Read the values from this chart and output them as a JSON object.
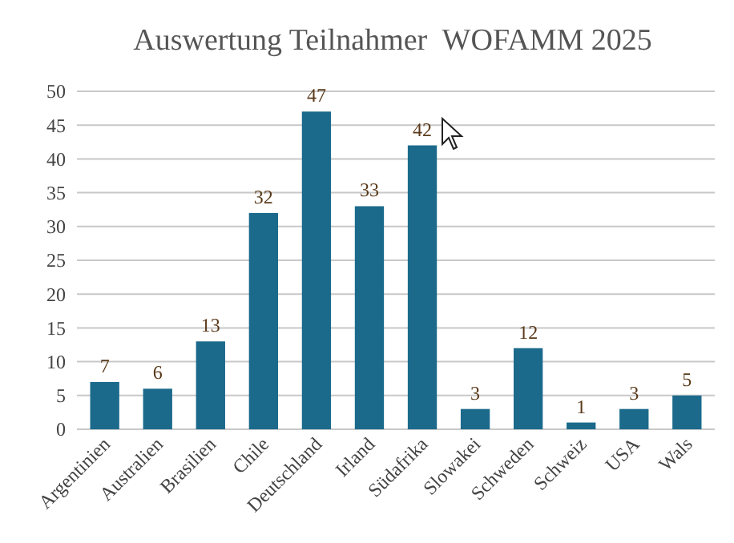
{
  "chart_data": {
    "type": "bar",
    "title": "Auswertung Teilnahmer  WOFAMM 2025",
    "categories": [
      "Argentinien",
      "Australien",
      "Brasilien",
      "Chile",
      "Deutschland",
      "Irland",
      "Südafrika",
      "Slowakei",
      "Schweden",
      "Schweiz",
      "USA",
      "Wals"
    ],
    "values": [
      7,
      6,
      13,
      32,
      47,
      33,
      42,
      3,
      12,
      1,
      3,
      5
    ],
    "color": "#1b6a8c",
    "ylim": [
      0,
      50
    ],
    "yticks": [
      0,
      5,
      10,
      15,
      20,
      25,
      30,
      35,
      40,
      45,
      50
    ],
    "grid": "y",
    "data_labels": true
  }
}
